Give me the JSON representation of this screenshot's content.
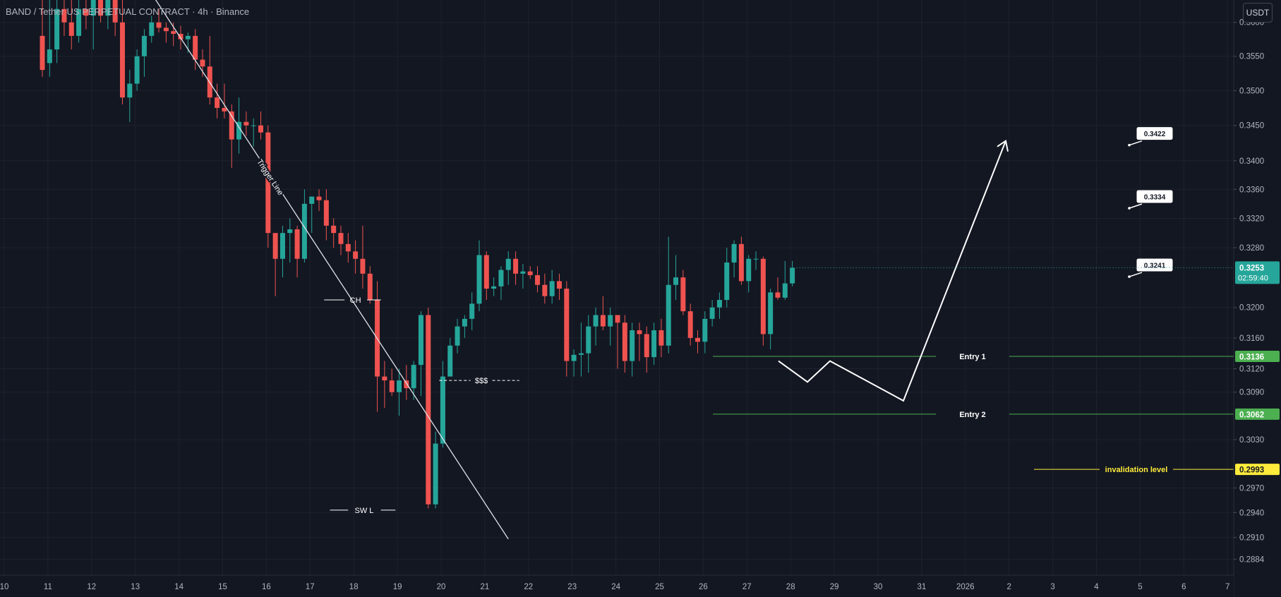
{
  "header": {
    "symbol_title": "BAND / Tether US PERPETUAL CONTRACT · 4h · Binance",
    "currency_label": "USDT"
  },
  "colors": {
    "background": "#131722",
    "up": "#26a69a",
    "down": "#ef5350",
    "grid": "#1e222d",
    "entry_line": "#4caf50",
    "invalidation": "#ffeb3b",
    "drawing": "#ffffff"
  },
  "chart_data": {
    "type": "candlestick",
    "title": "BAND / Tether US PERPETUAL CONTRACT · 4h · Binance",
    "y_axis": {
      "scale": "log",
      "range": [
        0.2865,
        0.3625
      ],
      "tick_labels": [
        "0.3600",
        "0.3550",
        "0.3500",
        "0.3450",
        "0.3400",
        "0.3360",
        "0.3320",
        "0.3280",
        "0.3200",
        "0.3160",
        "0.3120",
        "0.3090",
        "0.3030",
        "0.2970",
        "0.2940",
        "0.2910",
        "0.2884"
      ]
    },
    "x_axis": {
      "tick_labels": [
        "10",
        "11",
        "12",
        "13",
        "14",
        "15",
        "16",
        "17",
        "18",
        "19",
        "20",
        "21",
        "22",
        "23",
        "24",
        "25",
        "26",
        "27",
        "28",
        "29",
        "30",
        "31",
        "2026",
        "2",
        "3",
        "4",
        "5",
        "6",
        "7"
      ]
    },
    "grid": true,
    "candles": [
      {
        "o": 0.358,
        "h": 0.366,
        "l": 0.352,
        "c": 0.353
      },
      {
        "o": 0.354,
        "h": 0.365,
        "l": 0.352,
        "c": 0.356
      },
      {
        "o": 0.356,
        "h": 0.364,
        "l": 0.354,
        "c": 0.362
      },
      {
        "o": 0.362,
        "h": 0.366,
        "l": 0.358,
        "c": 0.36
      },
      {
        "o": 0.36,
        "h": 0.366,
        "l": 0.356,
        "c": 0.358
      },
      {
        "o": 0.358,
        "h": 0.365,
        "l": 0.357,
        "c": 0.362
      },
      {
        "o": 0.362,
        "h": 0.367,
        "l": 0.359,
        "c": 0.361
      },
      {
        "o": 0.361,
        "h": 0.368,
        "l": 0.356,
        "c": 0.364
      },
      {
        "o": 0.364,
        "h": 0.368,
        "l": 0.36,
        "c": 0.361
      },
      {
        "o": 0.361,
        "h": 0.367,
        "l": 0.359,
        "c": 0.365
      },
      {
        "o": 0.365,
        "h": 0.368,
        "l": 0.358,
        "c": 0.36
      },
      {
        "o": 0.36,
        "h": 0.365,
        "l": 0.348,
        "c": 0.349
      },
      {
        "o": 0.349,
        "h": 0.353,
        "l": 0.3455,
        "c": 0.351
      },
      {
        "o": 0.351,
        "h": 0.356,
        "l": 0.35,
        "c": 0.355
      },
      {
        "o": 0.355,
        "h": 0.359,
        "l": 0.352,
        "c": 0.358
      },
      {
        "o": 0.358,
        "h": 0.361,
        "l": 0.357,
        "c": 0.36
      },
      {
        "o": 0.36,
        "h": 0.362,
        "l": 0.3585,
        "c": 0.3592
      },
      {
        "o": 0.3592,
        "h": 0.36,
        "l": 0.357,
        "c": 0.3587
      },
      {
        "o": 0.3587,
        "h": 0.36,
        "l": 0.3565,
        "c": 0.3583
      },
      {
        "o": 0.3583,
        "h": 0.3595,
        "l": 0.356,
        "c": 0.3575
      },
      {
        "o": 0.3575,
        "h": 0.3585,
        "l": 0.3555,
        "c": 0.358
      },
      {
        "o": 0.358,
        "h": 0.359,
        "l": 0.353,
        "c": 0.3545
      },
      {
        "o": 0.3545,
        "h": 0.356,
        "l": 0.352,
        "c": 0.3535
      },
      {
        "o": 0.3535,
        "h": 0.358,
        "l": 0.348,
        "c": 0.349
      },
      {
        "o": 0.349,
        "h": 0.351,
        "l": 0.346,
        "c": 0.3475
      },
      {
        "o": 0.3475,
        "h": 0.351,
        "l": 0.346,
        "c": 0.347
      },
      {
        "o": 0.347,
        "h": 0.348,
        "l": 0.339,
        "c": 0.343
      },
      {
        "o": 0.343,
        "h": 0.349,
        "l": 0.341,
        "c": 0.3455
      },
      {
        "o": 0.3455,
        "h": 0.347,
        "l": 0.3435,
        "c": 0.345
      },
      {
        "o": 0.345,
        "h": 0.346,
        "l": 0.342,
        "c": 0.345
      },
      {
        "o": 0.345,
        "h": 0.347,
        "l": 0.343,
        "c": 0.344
      },
      {
        "o": 0.344,
        "h": 0.345,
        "l": 0.328,
        "c": 0.33
      },
      {
        "o": 0.33,
        "h": 0.33,
        "l": 0.3215,
        "c": 0.3265
      },
      {
        "o": 0.3265,
        "h": 0.331,
        "l": 0.324,
        "c": 0.33
      },
      {
        "o": 0.33,
        "h": 0.332,
        "l": 0.326,
        "c": 0.3305
      },
      {
        "o": 0.3305,
        "h": 0.331,
        "l": 0.324,
        "c": 0.3265
      },
      {
        "o": 0.3265,
        "h": 0.336,
        "l": 0.326,
        "c": 0.334
      },
      {
        "o": 0.334,
        "h": 0.335,
        "l": 0.33,
        "c": 0.335
      },
      {
        "o": 0.335,
        "h": 0.336,
        "l": 0.333,
        "c": 0.3345
      },
      {
        "o": 0.3345,
        "h": 0.336,
        "l": 0.329,
        "c": 0.331
      },
      {
        "o": 0.331,
        "h": 0.332,
        "l": 0.328,
        "c": 0.33
      },
      {
        "o": 0.33,
        "h": 0.331,
        "l": 0.327,
        "c": 0.3285
      },
      {
        "o": 0.3285,
        "h": 0.33,
        "l": 0.326,
        "c": 0.3275
      },
      {
        "o": 0.3275,
        "h": 0.329,
        "l": 0.3245,
        "c": 0.3265
      },
      {
        "o": 0.3265,
        "h": 0.331,
        "l": 0.3225,
        "c": 0.3245
      },
      {
        "o": 0.3245,
        "h": 0.3255,
        "l": 0.3205,
        "c": 0.321
      },
      {
        "o": 0.321,
        "h": 0.3235,
        "l": 0.3065,
        "c": 0.311
      },
      {
        "o": 0.311,
        "h": 0.313,
        "l": 0.307,
        "c": 0.3105
      },
      {
        "o": 0.3105,
        "h": 0.312,
        "l": 0.3085,
        "c": 0.309
      },
      {
        "o": 0.309,
        "h": 0.312,
        "l": 0.306,
        "c": 0.3105
      },
      {
        "o": 0.3105,
        "h": 0.3125,
        "l": 0.308,
        "c": 0.3095
      },
      {
        "o": 0.3095,
        "h": 0.313,
        "l": 0.308,
        "c": 0.3125
      },
      {
        "o": 0.3125,
        "h": 0.3195,
        "l": 0.3085,
        "c": 0.319
      },
      {
        "o": 0.319,
        "h": 0.32,
        "l": 0.2945,
        "c": 0.295
      },
      {
        "o": 0.295,
        "h": 0.304,
        "l": 0.2945,
        "c": 0.3025
      },
      {
        "o": 0.3025,
        "h": 0.313,
        "l": 0.302,
        "c": 0.311
      },
      {
        "o": 0.311,
        "h": 0.316,
        "l": 0.311,
        "c": 0.315
      },
      {
        "o": 0.315,
        "h": 0.3185,
        "l": 0.314,
        "c": 0.3175
      },
      {
        "o": 0.3175,
        "h": 0.319,
        "l": 0.316,
        "c": 0.3185
      },
      {
        "o": 0.3185,
        "h": 0.322,
        "l": 0.317,
        "c": 0.3205
      },
      {
        "o": 0.3205,
        "h": 0.329,
        "l": 0.3195,
        "c": 0.327
      },
      {
        "o": 0.327,
        "h": 0.3275,
        "l": 0.321,
        "c": 0.3225
      },
      {
        "o": 0.3225,
        "h": 0.324,
        "l": 0.3215,
        "c": 0.3228
      },
      {
        "o": 0.3228,
        "h": 0.3255,
        "l": 0.321,
        "c": 0.325
      },
      {
        "o": 0.325,
        "h": 0.3275,
        "l": 0.323,
        "c": 0.3265
      },
      {
        "o": 0.3265,
        "h": 0.3275,
        "l": 0.323,
        "c": 0.3245
      },
      {
        "o": 0.3245,
        "h": 0.3258,
        "l": 0.3225,
        "c": 0.3248
      },
      {
        "o": 0.3248,
        "h": 0.3255,
        "l": 0.3238,
        "c": 0.3243
      },
      {
        "o": 0.3243,
        "h": 0.3255,
        "l": 0.322,
        "c": 0.323
      },
      {
        "o": 0.323,
        "h": 0.3245,
        "l": 0.3205,
        "c": 0.3215
      },
      {
        "o": 0.3215,
        "h": 0.325,
        "l": 0.3205,
        "c": 0.3235
      },
      {
        "o": 0.3235,
        "h": 0.3245,
        "l": 0.321,
        "c": 0.3225
      },
      {
        "o": 0.3225,
        "h": 0.3235,
        "l": 0.311,
        "c": 0.313
      },
      {
        "o": 0.313,
        "h": 0.3145,
        "l": 0.311,
        "c": 0.3138
      },
      {
        "o": 0.3138,
        "h": 0.318,
        "l": 0.311,
        "c": 0.314
      },
      {
        "o": 0.314,
        "h": 0.319,
        "l": 0.3115,
        "c": 0.3175
      },
      {
        "o": 0.3175,
        "h": 0.32,
        "l": 0.315,
        "c": 0.319
      },
      {
        "o": 0.319,
        "h": 0.3215,
        "l": 0.317,
        "c": 0.3175
      },
      {
        "o": 0.3175,
        "h": 0.32,
        "l": 0.315,
        "c": 0.319
      },
      {
        "o": 0.319,
        "h": 0.319,
        "l": 0.312,
        "c": 0.318
      },
      {
        "o": 0.318,
        "h": 0.319,
        "l": 0.3115,
        "c": 0.313
      },
      {
        "o": 0.313,
        "h": 0.318,
        "l": 0.311,
        "c": 0.317
      },
      {
        "o": 0.317,
        "h": 0.318,
        "l": 0.313,
        "c": 0.3165
      },
      {
        "o": 0.3165,
        "h": 0.3175,
        "l": 0.3115,
        "c": 0.3135
      },
      {
        "o": 0.3135,
        "h": 0.318,
        "l": 0.3125,
        "c": 0.317
      },
      {
        "o": 0.317,
        "h": 0.3185,
        "l": 0.3135,
        "c": 0.315
      },
      {
        "o": 0.315,
        "h": 0.3295,
        "l": 0.314,
        "c": 0.323
      },
      {
        "o": 0.323,
        "h": 0.327,
        "l": 0.321,
        "c": 0.324
      },
      {
        "o": 0.324,
        "h": 0.325,
        "l": 0.319,
        "c": 0.3195
      },
      {
        "o": 0.3195,
        "h": 0.3205,
        "l": 0.315,
        "c": 0.316
      },
      {
        "o": 0.316,
        "h": 0.317,
        "l": 0.314,
        "c": 0.3155
      },
      {
        "o": 0.3155,
        "h": 0.3195,
        "l": 0.314,
        "c": 0.3185
      },
      {
        "o": 0.3185,
        "h": 0.321,
        "l": 0.3175,
        "c": 0.32
      },
      {
        "o": 0.32,
        "h": 0.322,
        "l": 0.3185,
        "c": 0.321
      },
      {
        "o": 0.321,
        "h": 0.328,
        "l": 0.32,
        "c": 0.326
      },
      {
        "o": 0.326,
        "h": 0.329,
        "l": 0.324,
        "c": 0.3285
      },
      {
        "o": 0.3285,
        "h": 0.3295,
        "l": 0.323,
        "c": 0.3235
      },
      {
        "o": 0.3235,
        "h": 0.327,
        "l": 0.322,
        "c": 0.3265
      },
      {
        "o": 0.3265,
        "h": 0.3275,
        "l": 0.325,
        "c": 0.3265
      },
      {
        "o": 0.3265,
        "h": 0.3268,
        "l": 0.315,
        "c": 0.3165
      },
      {
        "o": 0.3165,
        "h": 0.3225,
        "l": 0.3145,
        "c": 0.322
      },
      {
        "o": 0.322,
        "h": 0.324,
        "l": 0.321,
        "c": 0.3213
      },
      {
        "o": 0.3213,
        "h": 0.3262,
        "l": 0.321,
        "c": 0.3232
      },
      {
        "o": 0.3232,
        "h": 0.3262,
        "l": 0.3228,
        "c": 0.3253
      }
    ],
    "current_price": {
      "value": 0.3253,
      "label": "0.3253",
      "countdown": "02:59:40"
    },
    "levels": [
      {
        "name": "Entry 1",
        "value": 0.3136,
        "label": "0.3136"
      },
      {
        "name": "Entry 2",
        "value": 0.3062,
        "label": "0.3062"
      },
      {
        "name": "invalidation level",
        "value": 0.2993,
        "label": "0.2993"
      }
    ],
    "targets": [
      {
        "value": 0.3422,
        "label": "0.3422"
      },
      {
        "value": 0.3334,
        "label": "0.3334"
      },
      {
        "value": 0.3241,
        "label": "0.3241"
      }
    ],
    "annotations": {
      "trigger_line_label": "Trigger Line",
      "choch_label": "CH",
      "swing_low_label": "SW L",
      "liquidity_label": "$$$"
    }
  }
}
